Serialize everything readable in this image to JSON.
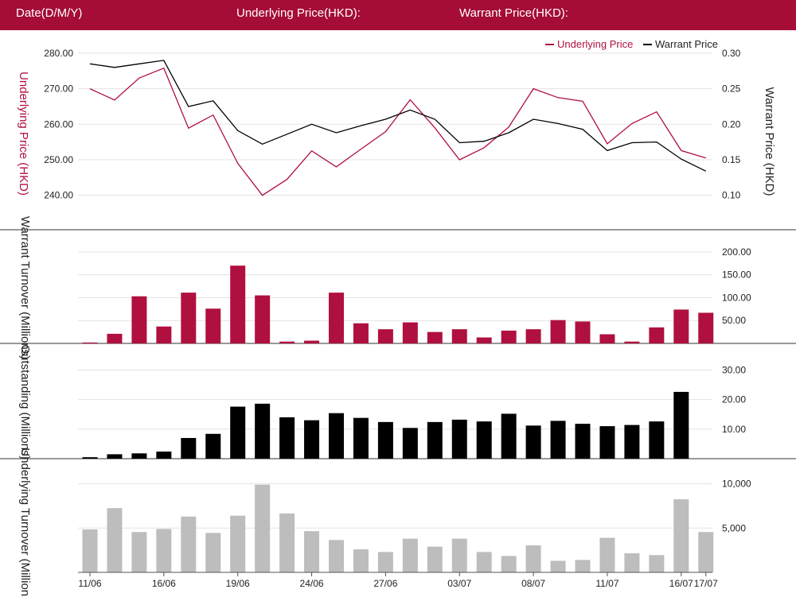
{
  "header": {
    "date_label": "Date(D/M/Y)",
    "underlying_label": "Underlying Price(HKD):",
    "warrant_label": "Warrant Price(HKD):"
  },
  "colors": {
    "header_bg": "#a50c36",
    "underlying": "#b0103f",
    "warrant": "#000000",
    "turnover_bar": "#b0103f",
    "outstanding_bar": "#000000",
    "underlying_turnover_bar": "#bdbdbd"
  },
  "legend": {
    "underlying": "Underlying Price",
    "warrant": "Warrant Price"
  },
  "x_ticks": [
    "11/06",
    "16/06",
    "19/06",
    "24/06",
    "27/06",
    "03/07",
    "08/07",
    "11/07",
    "16/07",
    "17/07"
  ],
  "chart_data": [
    {
      "type": "line",
      "ylabel": "Underlying Price (HKD)",
      "y2label": "Warrant  Price (HKD)",
      "yticks": [
        "280.00",
        "270.00",
        "260.00",
        "250.00",
        "240.00"
      ],
      "y2ticks": [
        "0.30",
        "0.25",
        "0.20",
        "0.15",
        "0.10"
      ],
      "ylim": [
        235,
        282
      ],
      "y2lim": [
        0.075,
        0.31
      ],
      "series": [
        {
          "name": "Underlying Price",
          "axis": "left",
          "values": [
            270.0,
            266.8,
            273.0,
            275.8,
            258.9,
            262.6,
            249.0,
            240.0,
            244.5,
            252.5,
            248.0,
            253.0,
            257.9,
            266.9,
            259.0,
            250.0,
            253.4,
            259.2,
            270.0,
            267.5,
            266.5,
            254.5,
            260.2,
            263.5,
            252.6,
            250.5
          ]
        },
        {
          "name": "Warrant Price",
          "axis": "right",
          "values": [
            0.285,
            0.28,
            0.285,
            0.29,
            0.225,
            0.233,
            0.191,
            0.172,
            0.186,
            0.2,
            0.188,
            0.198,
            0.207,
            0.22,
            0.207,
            0.174,
            0.176,
            0.188,
            0.207,
            0.201,
            0.193,
            0.163,
            0.174,
            0.175,
            0.151,
            0.134
          ]
        }
      ]
    },
    {
      "type": "bar",
      "ylabel": "Warrant  Turnover (Millions)",
      "yticks": [
        "200.00",
        "150.00",
        "100.00",
        "50.00"
      ],
      "ylim": [
        0,
        212
      ],
      "values": [
        2,
        21,
        103,
        37,
        111,
        76,
        170,
        105,
        4,
        6,
        111,
        44,
        31,
        46,
        25,
        31,
        13,
        28,
        31,
        51,
        48,
        20,
        4,
        35,
        74,
        67
      ]
    },
    {
      "type": "bar",
      "ylabel": "Outstanding (Millions)",
      "yticks": [
        "30.00",
        "20.00",
        "10.00"
      ],
      "ylim": [
        0,
        32
      ],
      "values": [
        0.5,
        1.5,
        1.8,
        2.4,
        7.0,
        8.4,
        17.6,
        18.6,
        14.0,
        13.0,
        15.4,
        13.8,
        12.4,
        10.4,
        12.4,
        13.2,
        12.6,
        15.2,
        11.2,
        12.8,
        11.8,
        11.0,
        11.4,
        12.6,
        22.6,
        0
      ]
    },
    {
      "type": "bar",
      "ylabel": "Underlying Turnover (Millions)",
      "yticks": [
        "10,000",
        "5,000"
      ],
      "ylim": [
        0,
        10500
      ],
      "values": [
        4850,
        7250,
        4550,
        4900,
        6300,
        4450,
        6400,
        9900,
        6650,
        4650,
        3650,
        2600,
        2300,
        3800,
        2900,
        3800,
        2300,
        1850,
        3050,
        1300,
        1400,
        3900,
        2150,
        1950,
        8250,
        4550
      ]
    }
  ]
}
